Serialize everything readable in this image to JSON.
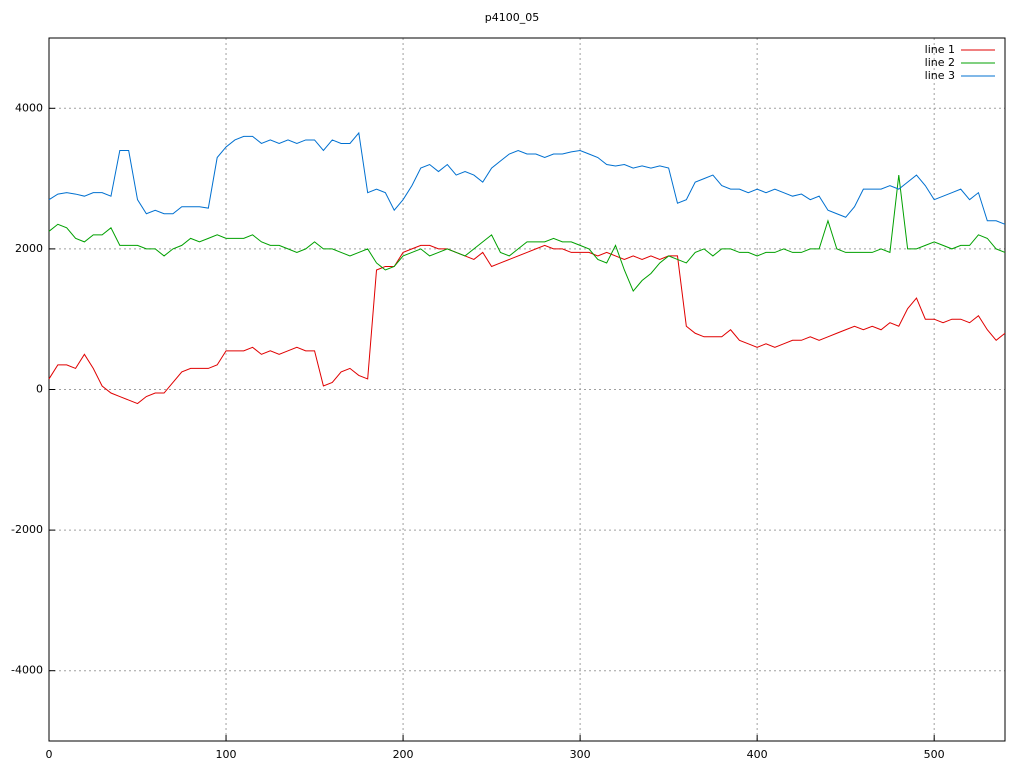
{
  "chart_data": {
    "type": "line",
    "title": "p4100_05",
    "x": [
      0,
      5,
      10,
      15,
      20,
      25,
      30,
      35,
      40,
      45,
      50,
      55,
      60,
      65,
      70,
      75,
      80,
      85,
      90,
      95,
      100,
      105,
      110,
      115,
      120,
      125,
      130,
      135,
      140,
      145,
      150,
      155,
      160,
      165,
      170,
      175,
      180,
      185,
      190,
      195,
      200,
      205,
      210,
      215,
      220,
      225,
      230,
      235,
      240,
      245,
      250,
      255,
      260,
      265,
      270,
      275,
      280,
      285,
      290,
      295,
      300,
      305,
      310,
      315,
      320,
      325,
      330,
      335,
      340,
      345,
      350,
      355,
      360,
      365,
      370,
      375,
      380,
      385,
      390,
      395,
      400,
      405,
      410,
      415,
      420,
      425,
      430,
      435,
      440,
      445,
      450,
      455,
      460,
      465,
      470,
      475,
      480,
      485,
      490,
      495,
      500,
      505,
      510,
      515,
      520,
      525,
      530,
      535,
      540
    ],
    "series": [
      {
        "name": "line 1",
        "color": "#e00000",
        "values": [
          150,
          350,
          350,
          300,
          500,
          300,
          50,
          -50,
          -100,
          -150,
          -200,
          -100,
          -50,
          -50,
          100,
          250,
          300,
          300,
          300,
          350,
          550,
          550,
          550,
          600,
          500,
          550,
          500,
          550,
          600,
          550,
          550,
          50,
          100,
          250,
          300,
          200,
          150,
          1700,
          1750,
          1750,
          1950,
          2000,
          2050,
          2050,
          2000,
          2000,
          1950,
          1900,
          1850,
          1950,
          1750,
          1800,
          1850,
          1900,
          1950,
          2000,
          2050,
          2000,
          2000,
          1950,
          1950,
          1950,
          1900,
          1950,
          1900,
          1850,
          1900,
          1850,
          1900,
          1850,
          1900,
          1900,
          900,
          800,
          750,
          750,
          750,
          850,
          700,
          650,
          600,
          650,
          600,
          650,
          700,
          700,
          750,
          700,
          750,
          800,
          850,
          900,
          850,
          900,
          850,
          950,
          900,
          1150,
          1300,
          1000,
          1000,
          950,
          1000,
          1000,
          950,
          1050,
          850,
          700,
          800
        ]
      },
      {
        "name": "line 2",
        "color": "#00a000",
        "values": [
          2250,
          2350,
          2300,
          2150,
          2100,
          2200,
          2200,
          2300,
          2050,
          2050,
          2050,
          2000,
          2000,
          1900,
          2000,
          2050,
          2150,
          2100,
          2150,
          2200,
          2150,
          2150,
          2150,
          2200,
          2100,
          2050,
          2050,
          2000,
          1950,
          2000,
          2100,
          2000,
          2000,
          1950,
          1900,
          1950,
          2000,
          1800,
          1700,
          1750,
          1900,
          1950,
          2000,
          1900,
          1950,
          2000,
          1950,
          1900,
          2000,
          2100,
          2200,
          1950,
          1900,
          2000,
          2100,
          2100,
          2100,
          2150,
          2100,
          2100,
          2050,
          2000,
          1850,
          1800,
          2050,
          1700,
          1400,
          1550,
          1650,
          1800,
          1900,
          1850,
          1800,
          1950,
          2000,
          1900,
          2000,
          2000,
          1950,
          1950,
          1900,
          1950,
          1950,
          2000,
          1950,
          1950,
          2000,
          2000,
          2400,
          2000,
          1950,
          1950,
          1950,
          1950,
          2000,
          1950,
          3050,
          2000,
          2000,
          2050,
          2100,
          2050,
          2000,
          2050,
          2050,
          2200,
          2150,
          2000,
          1950
        ]
      },
      {
        "name": "line 3",
        "color": "#0070d0",
        "values": [
          2700,
          2780,
          2800,
          2780,
          2750,
          2800,
          2800,
          2750,
          3400,
          3400,
          2700,
          2500,
          2550,
          2500,
          2500,
          2600,
          2600,
          2600,
          2580,
          3300,
          3450,
          3550,
          3600,
          3600,
          3500,
          3550,
          3500,
          3550,
          3500,
          3550,
          3550,
          3400,
          3550,
          3500,
          3500,
          3650,
          2800,
          2850,
          2800,
          2550,
          2700,
          2900,
          3150,
          3200,
          3100,
          3200,
          3050,
          3100,
          3050,
          2950,
          3150,
          3250,
          3350,
          3400,
          3350,
          3350,
          3300,
          3350,
          3350,
          3380,
          3400,
          3350,
          3300,
          3200,
          3180,
          3200,
          3150,
          3180,
          3150,
          3180,
          3150,
          2650,
          2700,
          2950,
          3000,
          3050,
          2900,
          2850,
          2850,
          2800,
          2850,
          2800,
          2850,
          2800,
          2750,
          2780,
          2700,
          2750,
          2550,
          2500,
          2450,
          2600,
          2850,
          2850,
          2850,
          2900,
          2850,
          2950,
          3050,
          2900,
          2700,
          2750,
          2800,
          2850,
          2700,
          2800,
          2400,
          2400,
          2350
        ]
      }
    ],
    "xlim": [
      0,
      540
    ],
    "xticks": [
      0,
      100,
      200,
      300,
      400,
      500
    ],
    "ylim": [
      -5000,
      5000
    ],
    "yticks": [
      -4000,
      -2000,
      0,
      2000,
      4000
    ],
    "grid": true,
    "legend": "top-right"
  }
}
